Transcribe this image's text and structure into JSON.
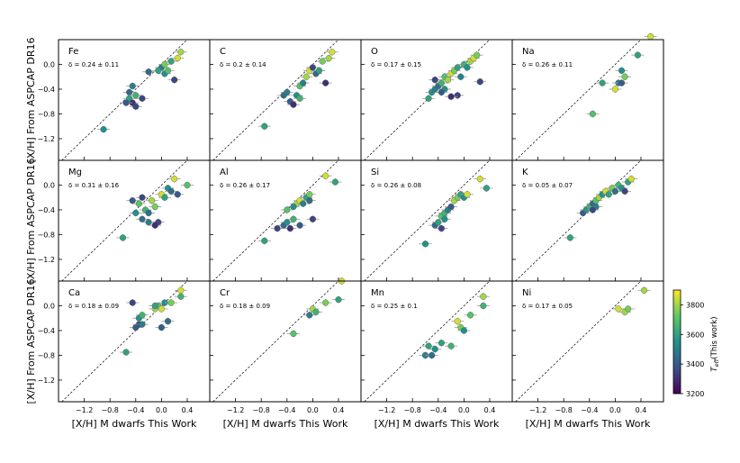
{
  "figure": {
    "ylabel": "[X/H] From ASPCAP DR16",
    "xlabel": "[X/H] M dwarfs This Work",
    "colorbar": {
      "label": "T_eff(This work)",
      "label_main": "T",
      "label_sub": "eff",
      "label_rest": "(This work)",
      "range": [
        3200,
        3900
      ],
      "ticks": [
        3200,
        3400,
        3600,
        3800
      ],
      "tick_labels": [
        "3200",
        "3400",
        "3600",
        "3800"
      ],
      "colormap": "viridis"
    },
    "x_tick_labels": [
      "−1.2",
      "−0.8",
      "−0.4",
      "0.0",
      "0.4"
    ],
    "y_tick_labels": [
      "−1.2",
      "−0.8",
      "−0.4",
      "0.0"
    ]
  },
  "chart_data": [
    {
      "type": "scatter",
      "element": "Fe",
      "delta": "δ = 0.24 ± 0.11",
      "xlim": [
        -1.6,
        0.75
      ],
      "ylim": [
        -1.55,
        0.4
      ],
      "reference_line": "y=x",
      "points": [
        {
          "x": -0.9,
          "y": -1.05,
          "c": 3550
        },
        {
          "x": -0.5,
          "y": -0.45,
          "c": 3450
        },
        {
          "x": -0.45,
          "y": -0.35,
          "c": 3500
        },
        {
          "x": -0.5,
          "y": -0.55,
          "c": 3600
        },
        {
          "x": -0.45,
          "y": -0.62,
          "c": 3300
        },
        {
          "x": -0.4,
          "y": -0.68,
          "c": 3350
        },
        {
          "x": -0.55,
          "y": -0.62,
          "c": 3400
        },
        {
          "x": -0.3,
          "y": -0.55,
          "c": 3350
        },
        {
          "x": -0.4,
          "y": -0.5,
          "c": 3650
        },
        {
          "x": -0.2,
          "y": -0.12,
          "c": 3450
        },
        {
          "x": 0.0,
          "y": -0.05,
          "c": 3500
        },
        {
          "x": 0.05,
          "y": -0.15,
          "c": 3550
        },
        {
          "x": 0.1,
          "y": -0.1,
          "c": 3700
        },
        {
          "x": 0.15,
          "y": 0.05,
          "c": 3600
        },
        {
          "x": 0.2,
          "y": -0.25,
          "c": 3350
        },
        {
          "x": 0.25,
          "y": 0.1,
          "c": 3850
        },
        {
          "x": 0.3,
          "y": 0.2,
          "c": 3800
        },
        {
          "x": -0.05,
          "y": -0.1,
          "c": 3600
        },
        {
          "x": 0.05,
          "y": 0.0,
          "c": 3750
        }
      ]
    },
    {
      "type": "scatter",
      "element": "C",
      "delta": "δ = 0.2 ± 0.14",
      "xlim": [
        -1.6,
        0.75
      ],
      "ylim": [
        -1.55,
        0.4
      ],
      "reference_line": "y=x",
      "points": [
        {
          "x": -0.75,
          "y": -1.0,
          "c": 3600
        },
        {
          "x": -0.45,
          "y": -0.5,
          "c": 3450
        },
        {
          "x": -0.4,
          "y": -0.45,
          "c": 3500
        },
        {
          "x": -0.35,
          "y": -0.6,
          "c": 3400
        },
        {
          "x": -0.3,
          "y": -0.65,
          "c": 3300
        },
        {
          "x": -0.25,
          "y": -0.5,
          "c": 3550
        },
        {
          "x": -0.2,
          "y": -0.55,
          "c": 3650
        },
        {
          "x": -0.2,
          "y": -0.35,
          "c": 3700
        },
        {
          "x": -0.1,
          "y": -0.2,
          "c": 3800
        },
        {
          "x": -0.05,
          "y": -0.1,
          "c": 3850
        },
        {
          "x": 0.0,
          "y": -0.05,
          "c": 3350
        },
        {
          "x": 0.05,
          "y": -0.15,
          "c": 3450
        },
        {
          "x": 0.1,
          "y": -0.1,
          "c": 3600
        },
        {
          "x": 0.15,
          "y": 0.05,
          "c": 3750
        },
        {
          "x": 0.2,
          "y": -0.3,
          "c": 3300
        },
        {
          "x": 0.25,
          "y": 0.1,
          "c": 3800
        },
        {
          "x": 0.3,
          "y": 0.2,
          "c": 3850
        },
        {
          "x": -0.15,
          "y": -0.3,
          "c": 3500
        }
      ]
    },
    {
      "type": "scatter",
      "element": "O",
      "delta": "δ = 0.17 ± 0.15",
      "xlim": [
        -1.6,
        0.75
      ],
      "ylim": [
        -1.55,
        0.4
      ],
      "reference_line": "y=x",
      "points": [
        {
          "x": -0.55,
          "y": -0.55,
          "c": 3600
        },
        {
          "x": -0.5,
          "y": -0.45,
          "c": 3550
        },
        {
          "x": -0.45,
          "y": -0.4,
          "c": 3500
        },
        {
          "x": -0.4,
          "y": -0.35,
          "c": 3450
        },
        {
          "x": -0.45,
          "y": -0.25,
          "c": 3350
        },
        {
          "x": -0.35,
          "y": -0.3,
          "c": 3650
        },
        {
          "x": -0.3,
          "y": -0.2,
          "c": 3700
        },
        {
          "x": -0.3,
          "y": -0.4,
          "c": 3550
        },
        {
          "x": -0.25,
          "y": -0.25,
          "c": 3800
        },
        {
          "x": -0.2,
          "y": -0.15,
          "c": 3850
        },
        {
          "x": -0.15,
          "y": -0.1,
          "c": 3750
        },
        {
          "x": -0.1,
          "y": -0.05,
          "c": 3600
        },
        {
          "x": -0.05,
          "y": -0.2,
          "c": 3500
        },
        {
          "x": -0.1,
          "y": -0.5,
          "c": 3350
        },
        {
          "x": -0.2,
          "y": -0.52,
          "c": 3300
        },
        {
          "x": 0.0,
          "y": 0.0,
          "c": 3650
        },
        {
          "x": 0.05,
          "y": -0.05,
          "c": 3550
        },
        {
          "x": 0.1,
          "y": 0.05,
          "c": 3800
        },
        {
          "x": 0.15,
          "y": 0.1,
          "c": 3850
        },
        {
          "x": 0.2,
          "y": 0.15,
          "c": 3750
        },
        {
          "x": 0.25,
          "y": -0.28,
          "c": 3350
        },
        {
          "x": -0.35,
          "y": -0.45,
          "c": 3400
        }
      ]
    },
    {
      "type": "scatter",
      "element": "Na",
      "delta": "δ = 0.26 ± 0.11",
      "xlim": [
        -1.6,
        0.75
      ],
      "ylim": [
        -1.55,
        0.4
      ],
      "reference_line": "y=x",
      "points": [
        {
          "x": -0.35,
          "y": -0.8,
          "c": 3700
        },
        {
          "x": -0.2,
          "y": -0.3,
          "c": 3600
        },
        {
          "x": 0.0,
          "y": -0.4,
          "c": 3850
        },
        {
          "x": 0.05,
          "y": -0.3,
          "c": 3500
        },
        {
          "x": 0.1,
          "y": -0.3,
          "c": 3400
        },
        {
          "x": 0.1,
          "y": -0.1,
          "c": 3550
        },
        {
          "x": 0.15,
          "y": -0.2,
          "c": 3750
        },
        {
          "x": 0.35,
          "y": 0.15,
          "c": 3600
        },
        {
          "x": 0.55,
          "y": 0.45,
          "c": 3850
        }
      ]
    },
    {
      "type": "scatter",
      "element": "Mg",
      "delta": "δ = 0.31 ± 0.16",
      "xlim": [
        -1.6,
        0.75
      ],
      "ylim": [
        -1.55,
        0.4
      ],
      "reference_line": "y=x",
      "points": [
        {
          "x": -0.6,
          "y": -0.85,
          "c": 3600
        },
        {
          "x": -0.45,
          "y": -0.25,
          "c": 3400
        },
        {
          "x": -0.4,
          "y": -0.45,
          "c": 3550
        },
        {
          "x": -0.35,
          "y": -0.3,
          "c": 3700
        },
        {
          "x": -0.3,
          "y": -0.55,
          "c": 3450
        },
        {
          "x": -0.3,
          "y": -0.2,
          "c": 3350
        },
        {
          "x": -0.25,
          "y": -0.4,
          "c": 3650
        },
        {
          "x": -0.2,
          "y": -0.6,
          "c": 3500
        },
        {
          "x": -0.15,
          "y": -0.25,
          "c": 3800
        },
        {
          "x": -0.1,
          "y": -0.35,
          "c": 3750
        },
        {
          "x": -0.05,
          "y": -0.6,
          "c": 3350
        },
        {
          "x": 0.0,
          "y": -0.15,
          "c": 3850
        },
        {
          "x": 0.05,
          "y": -0.2,
          "c": 3600
        },
        {
          "x": 0.1,
          "y": -0.05,
          "c": 3550
        },
        {
          "x": 0.15,
          "y": -0.1,
          "c": 3450
        },
        {
          "x": 0.2,
          "y": 0.1,
          "c": 3850
        },
        {
          "x": 0.25,
          "y": -0.15,
          "c": 3400
        },
        {
          "x": 0.4,
          "y": 0.0,
          "c": 3700
        },
        {
          "x": -0.1,
          "y": -0.65,
          "c": 3300
        },
        {
          "x": -0.2,
          "y": -0.45,
          "c": 3450
        }
      ]
    },
    {
      "type": "scatter",
      "element": "Al",
      "delta": "δ = 0.26 ± 0.17",
      "xlim": [
        -1.6,
        0.75
      ],
      "ylim": [
        -1.55,
        0.4
      ],
      "reference_line": "y=x",
      "points": [
        {
          "x": -0.75,
          "y": -0.9,
          "c": 3600
        },
        {
          "x": -0.55,
          "y": -0.7,
          "c": 3350
        },
        {
          "x": -0.45,
          "y": -0.65,
          "c": 3450
        },
        {
          "x": -0.4,
          "y": -0.6,
          "c": 3550
        },
        {
          "x": -0.4,
          "y": -0.4,
          "c": 3700
        },
        {
          "x": -0.35,
          "y": -0.7,
          "c": 3300
        },
        {
          "x": -0.3,
          "y": -0.55,
          "c": 3650
        },
        {
          "x": -0.25,
          "y": -0.3,
          "c": 3800
        },
        {
          "x": -0.2,
          "y": -0.65,
          "c": 3400
        },
        {
          "x": -0.2,
          "y": -0.25,
          "c": 3850
        },
        {
          "x": -0.15,
          "y": -0.3,
          "c": 3500
        },
        {
          "x": -0.1,
          "y": -0.2,
          "c": 3600
        },
        {
          "x": -0.05,
          "y": -0.15,
          "c": 3750
        },
        {
          "x": 0.0,
          "y": -0.55,
          "c": 3350
        },
        {
          "x": -0.05,
          "y": -0.25,
          "c": 3450
        },
        {
          "x": 0.2,
          "y": 0.15,
          "c": 3850
        },
        {
          "x": 0.35,
          "y": 0.05,
          "c": 3600
        },
        {
          "x": -0.3,
          "y": -0.35,
          "c": 3550
        }
      ]
    },
    {
      "type": "scatter",
      "element": "Si",
      "delta": "δ = 0.26 ± 0.08",
      "xlim": [
        -1.6,
        0.75
      ],
      "ylim": [
        -1.55,
        0.4
      ],
      "reference_line": "y=x",
      "points": [
        {
          "x": -0.6,
          "y": -0.95,
          "c": 3550
        },
        {
          "x": -0.45,
          "y": -0.65,
          "c": 3450
        },
        {
          "x": -0.4,
          "y": -0.6,
          "c": 3600
        },
        {
          "x": -0.35,
          "y": -0.5,
          "c": 3700
        },
        {
          "x": -0.35,
          "y": -0.7,
          "c": 3350
        },
        {
          "x": -0.3,
          "y": -0.55,
          "c": 3550
        },
        {
          "x": -0.3,
          "y": -0.45,
          "c": 3650
        },
        {
          "x": -0.25,
          "y": -0.4,
          "c": 3500
        },
        {
          "x": -0.2,
          "y": -0.35,
          "c": 3400
        },
        {
          "x": -0.15,
          "y": -0.25,
          "c": 3800
        },
        {
          "x": -0.1,
          "y": -0.2,
          "c": 3750
        },
        {
          "x": -0.05,
          "y": -0.15,
          "c": 3600
        },
        {
          "x": 0.0,
          "y": -0.2,
          "c": 3550
        },
        {
          "x": 0.05,
          "y": -0.15,
          "c": 3850
        },
        {
          "x": 0.25,
          "y": 0.1,
          "c": 3850
        },
        {
          "x": 0.35,
          "y": -0.05,
          "c": 3600
        }
      ]
    },
    {
      "type": "scatter",
      "element": "K",
      "delta": "δ = 0.05 ± 0.07",
      "xlim": [
        -1.6,
        0.75
      ],
      "ylim": [
        -1.55,
        0.4
      ],
      "reference_line": "y=x",
      "points": [
        {
          "x": -0.7,
          "y": -0.85,
          "c": 3600
        },
        {
          "x": -0.5,
          "y": -0.45,
          "c": 3400
        },
        {
          "x": -0.45,
          "y": -0.4,
          "c": 3550
        },
        {
          "x": -0.4,
          "y": -0.35,
          "c": 3650
        },
        {
          "x": -0.35,
          "y": -0.3,
          "c": 3450
        },
        {
          "x": -0.3,
          "y": -0.25,
          "c": 3700
        },
        {
          "x": -0.3,
          "y": -0.35,
          "c": 3500
        },
        {
          "x": -0.25,
          "y": -0.2,
          "c": 3800
        },
        {
          "x": -0.2,
          "y": -0.15,
          "c": 3550
        },
        {
          "x": -0.15,
          "y": -0.1,
          "c": 3850
        },
        {
          "x": -0.1,
          "y": -0.15,
          "c": 3600
        },
        {
          "x": -0.05,
          "y": -0.05,
          "c": 3750
        },
        {
          "x": 0.0,
          "y": -0.1,
          "c": 3450
        },
        {
          "x": 0.05,
          "y": 0.0,
          "c": 3650
        },
        {
          "x": 0.1,
          "y": -0.05,
          "c": 3550
        },
        {
          "x": 0.15,
          "y": -0.1,
          "c": 3350
        },
        {
          "x": 0.2,
          "y": 0.05,
          "c": 3600
        },
        {
          "x": 0.25,
          "y": 0.1,
          "c": 3850
        },
        {
          "x": -0.35,
          "y": -0.4,
          "c": 3350
        }
      ]
    },
    {
      "type": "scatter",
      "element": "Ca",
      "delta": "δ = 0.18 ± 0.09",
      "xlim": [
        -1.6,
        0.75
      ],
      "ylim": [
        -1.55,
        0.4
      ],
      "reference_line": "y=x",
      "points": [
        {
          "x": -0.55,
          "y": -0.75,
          "c": 3600
        },
        {
          "x": -0.4,
          "y": -0.35,
          "c": 3400
        },
        {
          "x": -0.35,
          "y": -0.3,
          "c": 3350
        },
        {
          "x": -0.35,
          "y": -0.2,
          "c": 3550
        },
        {
          "x": -0.3,
          "y": -0.3,
          "c": 3500
        },
        {
          "x": -0.3,
          "y": -0.15,
          "c": 3650
        },
        {
          "x": -0.45,
          "y": 0.05,
          "c": 3350
        },
        {
          "x": -0.1,
          "y": -0.05,
          "c": 3800
        },
        {
          "x": -0.05,
          "y": 0.0,
          "c": 3700
        },
        {
          "x": 0.0,
          "y": -0.05,
          "c": 3850
        },
        {
          "x": 0.0,
          "y": -0.35,
          "c": 3400
        },
        {
          "x": 0.05,
          "y": 0.05,
          "c": 3550
        },
        {
          "x": 0.1,
          "y": -0.25,
          "c": 3450
        },
        {
          "x": 0.15,
          "y": 0.05,
          "c": 3750
        },
        {
          "x": 0.3,
          "y": 0.15,
          "c": 3650
        },
        {
          "x": 0.3,
          "y": 0.25,
          "c": 3850
        },
        {
          "x": -0.1,
          "y": 0.0,
          "c": 3600
        }
      ]
    },
    {
      "type": "scatter",
      "element": "Cr",
      "delta": "δ = 0.18 ± 0.09",
      "xlim": [
        -1.6,
        0.75
      ],
      "ylim": [
        -1.55,
        0.4
      ],
      "reference_line": "y=x",
      "points": [
        {
          "x": -0.3,
          "y": -0.45,
          "c": 3700
        },
        {
          "x": -0.05,
          "y": -0.15,
          "c": 3500
        },
        {
          "x": 0.0,
          "y": -0.05,
          "c": 3800
        },
        {
          "x": 0.05,
          "y": -0.1,
          "c": 3650
        },
        {
          "x": 0.2,
          "y": 0.05,
          "c": 3750
        },
        {
          "x": 0.4,
          "y": 0.1,
          "c": 3600
        },
        {
          "x": 0.45,
          "y": 0.4,
          "c": 3850
        }
      ]
    },
    {
      "type": "scatter",
      "element": "Mn",
      "delta": "δ = 0.25 ± 0.1",
      "xlim": [
        -1.6,
        0.75
      ],
      "ylim": [
        -1.55,
        0.4
      ],
      "reference_line": "y=x",
      "points": [
        {
          "x": -0.6,
          "y": -0.8,
          "c": 3500
        },
        {
          "x": -0.55,
          "y": -0.65,
          "c": 3600
        },
        {
          "x": -0.5,
          "y": -0.8,
          "c": 3450
        },
        {
          "x": -0.45,
          "y": -0.7,
          "c": 3550
        },
        {
          "x": -0.35,
          "y": -0.6,
          "c": 3600
        },
        {
          "x": -0.2,
          "y": -0.65,
          "c": 3650
        },
        {
          "x": -0.1,
          "y": -0.25,
          "c": 3850
        },
        {
          "x": -0.05,
          "y": -0.35,
          "c": 3750
        },
        {
          "x": 0.0,
          "y": -0.4,
          "c": 3550
        },
        {
          "x": 0.1,
          "y": -0.15,
          "c": 3700
        },
        {
          "x": 0.3,
          "y": 0.0,
          "c": 3650
        },
        {
          "x": 0.3,
          "y": 0.15,
          "c": 3800
        }
      ]
    },
    {
      "type": "scatter",
      "element": "Ni",
      "delta": "δ = 0.17 ± 0.05",
      "xlim": [
        -1.6,
        0.75
      ],
      "ylim": [
        -1.55,
        0.4
      ],
      "reference_line": "y=x",
      "points": [
        {
          "x": 0.05,
          "y": -0.05,
          "c": 3850
        },
        {
          "x": 0.15,
          "y": -0.1,
          "c": 3800
        },
        {
          "x": 0.2,
          "y": -0.05,
          "c": 3750
        },
        {
          "x": 0.45,
          "y": 0.25,
          "c": 3800
        }
      ]
    }
  ]
}
